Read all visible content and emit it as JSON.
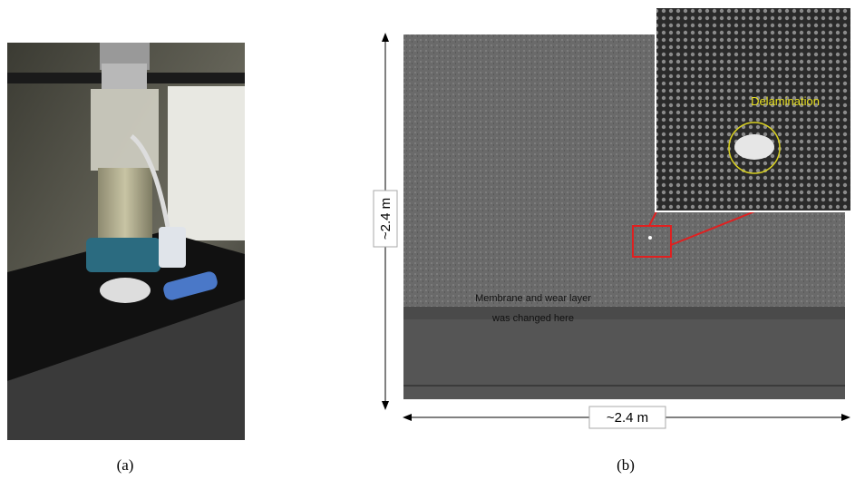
{
  "panels": [
    {
      "caption": "(a)"
    },
    {
      "caption": "(b)",
      "height_label": "~2.4 m",
      "width_label": "~2.4 m",
      "note_lines": [
        "Membrane and wear layer",
        "was changed here"
      ],
      "inset_label": "Delamination"
    }
  ]
}
